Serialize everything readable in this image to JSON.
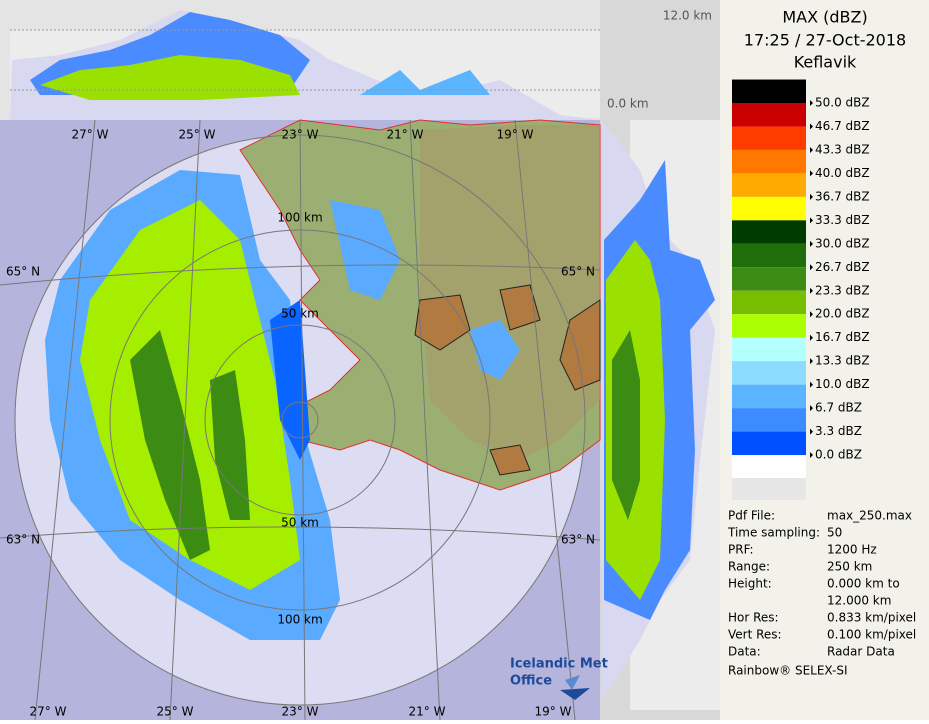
{
  "header": {
    "title": "MAX (dBZ)",
    "time": "17:25 / 27-Oct-2018",
    "site": "Keflavik"
  },
  "legend": [
    {
      "label": "50.0 dBZ",
      "color": "#000000"
    },
    {
      "label": "46.7 dBZ",
      "color": "#c80000"
    },
    {
      "label": "43.3 dBZ",
      "color": "#ff3c00"
    },
    {
      "label": "40.0 dBZ",
      "color": "#ff7800"
    },
    {
      "label": "36.7 dBZ",
      "color": "#ffaa00"
    },
    {
      "label": "33.3 dBZ",
      "color": "#ffff00"
    },
    {
      "label": "30.0 dBZ",
      "color": "#003c00"
    },
    {
      "label": "26.7 dBZ",
      "color": "#1e6e0a"
    },
    {
      "label": "23.3 dBZ",
      "color": "#3c8c14"
    },
    {
      "label": "20.0 dBZ",
      "color": "#78be00"
    },
    {
      "label": "16.7 dBZ",
      "color": "#aaff00"
    },
    {
      "label": "13.3 dBZ",
      "color": "#b4ffff"
    },
    {
      "label": "10.0 dBZ",
      "color": "#8cdcff"
    },
    {
      "label": "6.7 dBZ",
      "color": "#5ab4ff"
    },
    {
      "label": "3.3 dBZ",
      "color": "#3c8cff"
    },
    {
      "label": "0.0 dBZ",
      "color": "#0050ff"
    }
  ],
  "info": [
    {
      "key": "Pdf File:",
      "value": "max_250.max"
    },
    {
      "key": "Time sampling:",
      "value": "50"
    },
    {
      "key": "PRF:",
      "value": "1200 Hz"
    },
    {
      "key": "Range:",
      "value": "250 km"
    },
    {
      "key": "Height:",
      "value": "0.000 km to"
    },
    {
      "key": "",
      "value": "12.000 km"
    },
    {
      "key": "Hor Res:",
      "value": "0.833 km/pixel"
    },
    {
      "key": "Vert Res:",
      "value": "0.100 km/pixel"
    },
    {
      "key": "Data:",
      "value": "Radar Data"
    }
  ],
  "footer": "Rainbow® SELEX-SI",
  "height_axis": {
    "top": "12.0 km",
    "bottom": "0.0 km"
  },
  "map": {
    "lon_top": [
      "27° W",
      "25° W",
      "23° W",
      "21° W",
      "19° W"
    ],
    "lon_bottom": [
      "27° W",
      "25° W",
      "23° W",
      "21° W",
      "19° W"
    ],
    "lat_left": [
      "65° N",
      "63° N"
    ],
    "lat_right": [
      "65° N",
      "63° N"
    ],
    "range_labels": [
      "100 km",
      "50 km",
      "50 km",
      "100 km"
    ],
    "logo": [
      "Icelandic Met",
      "Office"
    ]
  }
}
